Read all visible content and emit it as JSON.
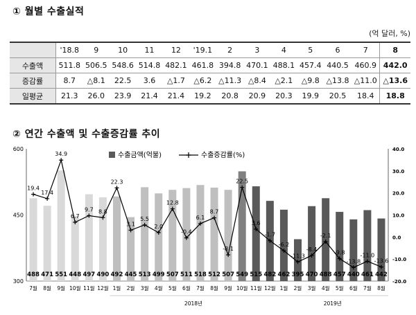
{
  "section1": {
    "title": "① 월별 수출실적",
    "unit": "(억 달러, %)"
  },
  "table": {
    "headers": [
      "'18.8",
      "9",
      "10",
      "11",
      "12",
      "'19.1",
      "2",
      "3",
      "4",
      "5",
      "6",
      "7",
      "8"
    ],
    "rows": [
      {
        "label": "수출액",
        "values": [
          "511.8",
          "506.5",
          "548.6",
          "514.8",
          "482.1",
          "461.8",
          "394.8",
          "470.1",
          "488.1",
          "457.4",
          "440.5",
          "460.9",
          "442.0"
        ]
      },
      {
        "label": "증감률",
        "values": [
          "8.7",
          "△8.1",
          "22.5",
          "3.6",
          "△1.7",
          "△6.2",
          "△11.3",
          "△8.4",
          "△2.1",
          "△9.8",
          "△13.8",
          "△11.0",
          "△13.6"
        ]
      },
      {
        "label": "일평균",
        "values": [
          "21.3",
          "26.0",
          "23.9",
          "21.4",
          "21.4",
          "19.2",
          "20.8",
          "20.9",
          "20.3",
          "19.9",
          "20.5",
          "18.4",
          "18.8"
        ]
      }
    ]
  },
  "section2": {
    "title": "② 연간 수출액 및 수출증감률 추이"
  },
  "chart_data": {
    "type": "bar+line",
    "categories": [
      "7월",
      "8월",
      "9월",
      "10월",
      "11월",
      "12월",
      "1월",
      "2월",
      "3월",
      "4월",
      "5월",
      "6월",
      "7월",
      "8월",
      "9월",
      "10월",
      "11월",
      "12월",
      "1월",
      "2월",
      "3월",
      "4월",
      "5월",
      "6월",
      "7월",
      "8월"
    ],
    "year_groups": [
      {
        "label": "2018년",
        "start": 6,
        "end": 17
      },
      {
        "label": "2019년",
        "start": 18,
        "end": 25
      }
    ],
    "series": [
      {
        "name": "수출금액(억불)",
        "type": "bar",
        "axis": "left",
        "values": [
          488,
          471,
          551,
          448,
          497,
          490,
          492,
          445,
          513,
          499,
          507,
          511,
          518,
          512,
          507,
          549,
          515,
          482,
          462,
          395,
          470,
          488,
          457,
          440,
          461,
          442
        ]
      },
      {
        "name": "수출증감률(%)",
        "type": "line",
        "axis": "right",
        "values": [
          19.4,
          17.4,
          34.9,
          6.7,
          9.7,
          8.8,
          22.3,
          3.1,
          5.5,
          2.0,
          12.8,
          -0.4,
          6.1,
          8.7,
          -8.1,
          22.5,
          3.6,
          -1.7,
          -6.2,
          -11.3,
          -8.4,
          -2.1,
          -9.8,
          -13.8,
          -11.0,
          -13.6
        ],
        "labels": [
          "19.4",
          "17.4",
          "34.9",
          "6.7",
          "9.7",
          "8.8",
          "22.3",
          "3.1",
          "5.5",
          "2.0",
          "12.8",
          "-0.4",
          "6.1",
          "8.7",
          "-8.1",
          "22.5",
          "3.6",
          "-1.7",
          "-6.2",
          "-11.3",
          "-8.4",
          "-2.1",
          "-9.8",
          "-13.8",
          "-11.0",
          "-13.6"
        ]
      }
    ],
    "bar_colors": [
      "#d9d9d9",
      "#d9d9d9",
      "#d9d9d9",
      "#d9d9d9",
      "#d9d9d9",
      "#d9d9d9",
      "#bfbfbf",
      "#bfbfbf",
      "#bfbfbf",
      "#bfbfbf",
      "#bfbfbf",
      "#bfbfbf",
      "#bfbfbf",
      "#bfbfbf",
      "#bfbfbf",
      "#808080",
      "#595959",
      "#595959",
      "#595959",
      "#595959",
      "#595959",
      "#595959",
      "#595959",
      "#595959",
      "#595959",
      "#595959"
    ],
    "line_color": "#000000",
    "ylim_left": [
      300,
      600
    ],
    "yticks_left": [
      "300",
      "450",
      "600"
    ],
    "ylim_right": [
      -20,
      40
    ],
    "yticks_right": [
      "-20.0",
      "-10.0",
      "0.0",
      "10.0",
      "20.0",
      "30.0",
      "40.0"
    ],
    "grid": false,
    "legend_position": "top-center"
  }
}
